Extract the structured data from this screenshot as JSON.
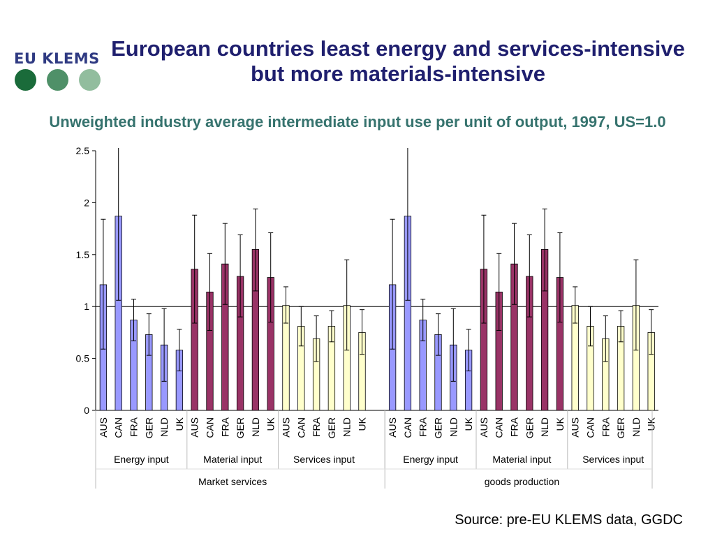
{
  "logo": {
    "text": "EU KLEMS",
    "dot_colors": [
      "#1a6b3a",
      "#4f9068",
      "#92bd9e"
    ]
  },
  "slide_title": "European countries least energy and services-intensive but more materials-intensive",
  "source": "Source: pre-EU KLEMS data, GGDC",
  "colors": {
    "energy": "#9999ff",
    "material": "#993366",
    "services": "#ffffcc",
    "reference_line": "#000000"
  },
  "chart_data": {
    "type": "bar",
    "title": "Unweighted industry average intermediate input use per unit of output, 1997, US=1.0",
    "ylim": [
      0,
      2.5
    ],
    "yticks": [
      0,
      0.5,
      1,
      1.5,
      2,
      2.5
    ],
    "reference_line": 1,
    "countries": [
      "AUS",
      "CAN",
      "FRA",
      "GER",
      "NLD",
      "UK"
    ],
    "sectors": [
      {
        "name": "Market services",
        "groups": [
          {
            "name": "Energy input",
            "color_key": "energy",
            "values": [
              1.21,
              1.87,
              0.87,
              0.73,
              0.63,
              0.58
            ],
            "err_low": [
              0.59,
              1.06,
              0.67,
              0.53,
              0.28,
              0.38
            ],
            "err_high": [
              1.84,
              2.55,
              1.07,
              0.93,
              0.98,
              0.78
            ]
          },
          {
            "name": "Material input",
            "color_key": "material",
            "values": [
              1.36,
              1.14,
              1.41,
              1.29,
              1.55,
              1.28
            ],
            "err_low": [
              0.84,
              0.77,
              1.02,
              0.9,
              1.15,
              0.85
            ],
            "err_high": [
              1.88,
              1.51,
              1.8,
              1.69,
              1.94,
              1.71
            ]
          },
          {
            "name": "Services input",
            "color_key": "services",
            "values": [
              1.01,
              0.81,
              0.69,
              0.81,
              1.01,
              0.75
            ],
            "err_low": [
              0.84,
              0.62,
              0.47,
              0.66,
              0.58,
              0.54
            ],
            "err_high": [
              1.19,
              1.0,
              0.91,
              0.96,
              1.45,
              0.97
            ]
          }
        ]
      },
      {
        "name": "goods production",
        "groups": [
          {
            "name": "Energy input",
            "color_key": "energy",
            "values": [
              1.21,
              1.87,
              0.87,
              0.73,
              0.63,
              0.58
            ],
            "err_low": [
              0.59,
              1.06,
              0.67,
              0.53,
              0.28,
              0.38
            ],
            "err_high": [
              1.84,
              2.55,
              1.07,
              0.93,
              0.98,
              0.78
            ]
          },
          {
            "name": "Material input",
            "color_key": "material",
            "values": [
              1.36,
              1.14,
              1.41,
              1.29,
              1.55,
              1.28
            ],
            "err_low": [
              0.84,
              0.77,
              1.02,
              0.9,
              1.15,
              0.85
            ],
            "err_high": [
              1.88,
              1.51,
              1.8,
              1.69,
              1.94,
              1.71
            ]
          },
          {
            "name": "Services input",
            "color_key": "services",
            "values": [
              1.01,
              0.81,
              0.69,
              0.81,
              1.01,
              0.75
            ],
            "err_low": [
              0.84,
              0.62,
              0.47,
              0.66,
              0.58,
              0.54
            ],
            "err_high": [
              1.19,
              1.0,
              0.91,
              0.96,
              1.45,
              0.97
            ]
          }
        ]
      }
    ]
  }
}
